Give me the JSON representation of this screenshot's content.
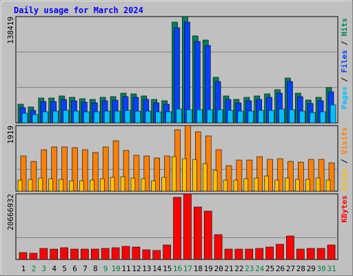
{
  "chart_data": [
    {
      "type": "bar",
      "title": "Daily usage for March 2024",
      "ylim": [
        0,
        138419
      ],
      "yticks": [
        138419
      ],
      "grid": true,
      "series": [
        {
          "name": "Hits",
          "color": "#00805c",
          "values": [
            24268,
            20672,
            32357,
            32357,
            35053,
            33256,
            31458,
            30559,
            33256,
            34154,
            38648,
            37750,
            35053,
            30559,
            28762,
            131225,
            138419,
            113249,
            107856,
            59321,
            35053,
            30559,
            33256,
            35053,
            37750,
            43142,
            58422,
            38648,
            29660,
            33256,
            45839
          ]
        },
        {
          "name": "Files",
          "color": "#0040ff",
          "values": [
            19800,
            16200,
            27800,
            27800,
            30500,
            28700,
            26900,
            26000,
            28700,
            29600,
            34100,
            33200,
            30500,
            26000,
            24300,
            124000,
            131200,
            106000,
            100700,
            53900,
            30500,
            26000,
            28700,
            30500,
            33200,
            38600,
            53900,
            34100,
            25200,
            28700,
            40400
          ]
        },
        {
          "name": "Pages",
          "color": "#00c0ff",
          "values": [
            12600,
            10800,
            14400,
            15300,
            16200,
            15300,
            14400,
            14400,
            15300,
            15300,
            16200,
            15300,
            15300,
            14400,
            14400,
            18000,
            17100,
            17100,
            17100,
            17100,
            16200,
            15300,
            15300,
            16200,
            16200,
            18000,
            17100,
            15300,
            13500,
            14400,
            23400
          ]
        }
      ]
    },
    {
      "type": "bar",
      "ylim": [
        0,
        1919
      ],
      "yticks": [
        1919
      ],
      "grid": true,
      "series": [
        {
          "name": "Visits",
          "color": "#ff8000",
          "values": [
            1030,
            869,
            1212,
            1293,
            1293,
            1273,
            1212,
            1131,
            1293,
            1475,
            1192,
            1050,
            1030,
            970,
            1030,
            1798,
            1919,
            1737,
            1616,
            1212,
            747,
            909,
            909,
            1010,
            929,
            949,
            869,
            848,
            929,
            929,
            828
          ]
        },
        {
          "name": "Sites",
          "color": "#ffc000",
          "values": [
            323,
            343,
            384,
            364,
            343,
            303,
            303,
            323,
            364,
            404,
            424,
            384,
            364,
            303,
            404,
            1010,
            949,
            929,
            808,
            606,
            323,
            323,
            364,
            384,
            444,
            323,
            384,
            343,
            343,
            384,
            323
          ]
        }
      ]
    },
    {
      "type": "bar",
      "ylim": [
        0,
        20666932
      ],
      "yticks": [
        20666932
      ],
      "grid": true,
      "categories": [
        "1",
        "2",
        "3",
        "4",
        "5",
        "6",
        "7",
        "8",
        "9",
        "10",
        "11",
        "12",
        "13",
        "14",
        "15",
        "16",
        "17",
        "18",
        "19",
        "20",
        "21",
        "22",
        "23",
        "24",
        "25",
        "26",
        "27",
        "28",
        "29",
        "30",
        "31"
      ],
      "category_colors": [
        "#000000",
        "#008040",
        "#008040",
        "#000000",
        "#000000",
        "#000000",
        "#000000",
        "#000000",
        "#008040",
        "#008040",
        "#000000",
        "#000000",
        "#000000",
        "#000000",
        "#000000",
        "#008040",
        "#008040",
        "#000000",
        "#000000",
        "#000000",
        "#000000",
        "#000000",
        "#008040",
        "#008040",
        "#000000",
        "#000000",
        "#000000",
        "#000000",
        "#000000",
        "#008040",
        "#008040"
      ],
      "series": [
        {
          "name": "KBytes",
          "color": "#ff0000",
          "values": [
            2175000,
            1958000,
            3481000,
            3263000,
            3698000,
            3263000,
            3263000,
            3263000,
            3481000,
            3698000,
            4133000,
            3916000,
            3046000,
            2828000,
            4568000,
            19579000,
            20666932,
            16534000,
            15228000,
            7832000,
            3263000,
            3263000,
            3263000,
            3481000,
            3916000,
            4786000,
            7397000,
            3263000,
            3481000,
            3481000,
            4568000
          ]
        }
      ]
    }
  ]
}
